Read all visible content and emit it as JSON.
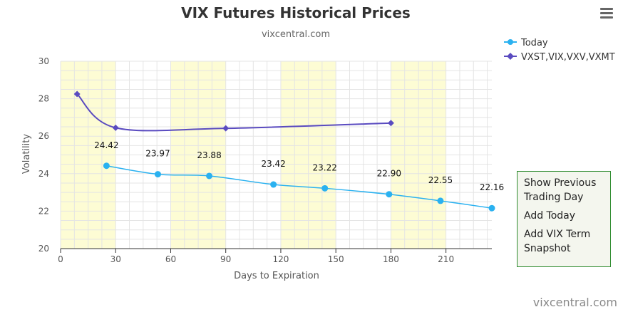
{
  "chart_data": {
    "type": "line",
    "title": "VIX Futures Historical Prices",
    "subtitle": "vixcentral.com",
    "xlabel": "Days to Expiration",
    "ylabel": "Volatility",
    "xlim": [
      0,
      235
    ],
    "ylim": [
      20,
      30
    ],
    "x_ticks": [
      0,
      30,
      60,
      90,
      120,
      150,
      180,
      210
    ],
    "y_ticks": [
      20,
      22,
      24,
      26,
      28,
      30
    ],
    "x_bands": [
      [
        0,
        30
      ],
      [
        60,
        90
      ],
      [
        120,
        150
      ],
      [
        180,
        210
      ]
    ],
    "grid": true,
    "legend_position": "top-right",
    "series": [
      {
        "name": "Today",
        "color": "#2ab1f0",
        "marker": "circle",
        "points": [
          {
            "x": 25,
            "y": 24.42,
            "label": "24.42"
          },
          {
            "x": 53,
            "y": 23.97,
            "label": "23.97"
          },
          {
            "x": 81,
            "y": 23.88,
            "label": "23.88"
          },
          {
            "x": 116,
            "y": 23.42,
            "label": "23.42"
          },
          {
            "x": 144,
            "y": 23.22,
            "label": "23.22"
          },
          {
            "x": 179,
            "y": 22.9,
            "label": "22.90"
          },
          {
            "x": 207,
            "y": 22.55,
            "label": "22.55"
          },
          {
            "x": 235,
            "y": 22.16,
            "label": "22.16"
          }
        ]
      },
      {
        "name": "VXST,VIX,VXV,VXMT",
        "color": "#5a4bc0",
        "marker": "diamond",
        "points": [
          {
            "x": 9,
            "y": 28.25
          },
          {
            "x": 30,
            "y": 26.45
          },
          {
            "x": 90,
            "y": 26.42
          },
          {
            "x": 180,
            "y": 26.7
          }
        ]
      }
    ]
  },
  "context_menu": {
    "items": [
      "Show Previous Trading Day",
      "Add Today",
      "Add VIX Term Snapshot"
    ]
  },
  "credit": "vixcentral.com"
}
